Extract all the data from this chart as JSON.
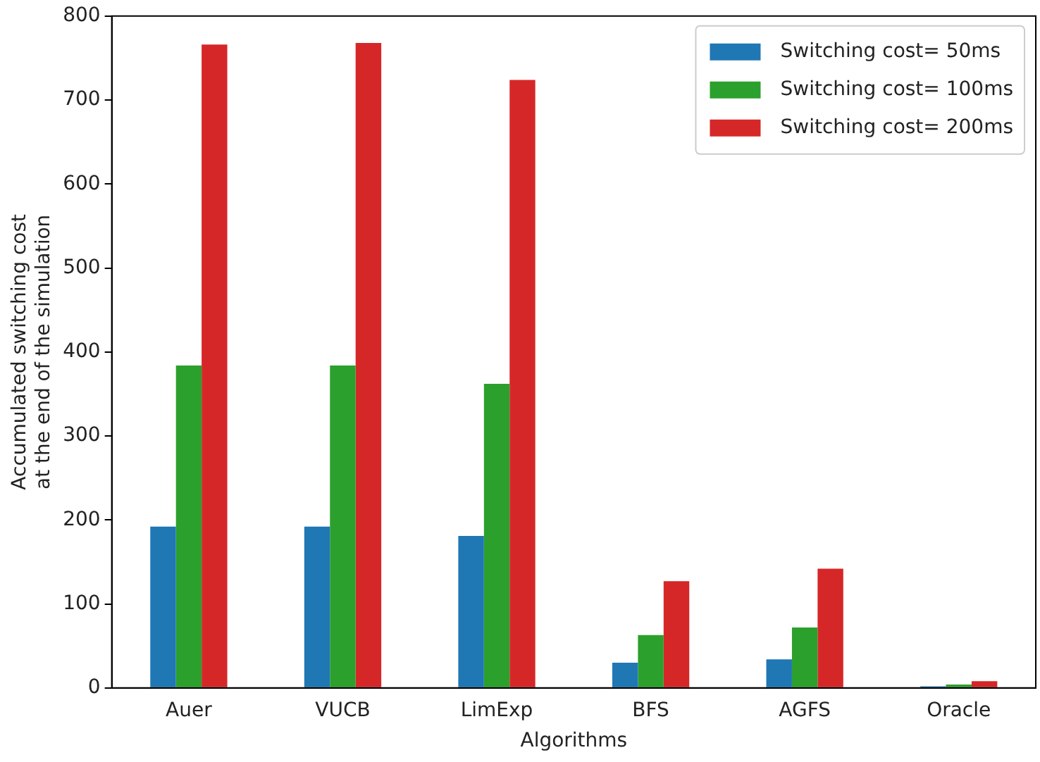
{
  "chart_data": {
    "type": "bar",
    "xlabel": "Algorithms",
    "ylabel": "Accumulated switching cost\nat the end of the simulation",
    "categories": [
      "Auer",
      "VUCB",
      "LimExp",
      "BFS",
      "AGFS",
      "Oracle"
    ],
    "series": [
      {
        "name": "Switching cost= 50ms",
        "color": "#1f77b4",
        "values": [
          192,
          192,
          181,
          30,
          34,
          2
        ]
      },
      {
        "name": "Switching cost= 100ms",
        "color": "#2ca02c",
        "values": [
          384,
          384,
          362,
          63,
          72,
          4
        ]
      },
      {
        "name": "Switching cost= 200ms",
        "color": "#d62728",
        "values": [
          766,
          768,
          724,
          127,
          142,
          8
        ]
      }
    ],
    "ylim": [
      0,
      800
    ],
    "yticks": [
      0,
      100,
      200,
      300,
      400,
      500,
      600,
      700,
      800
    ],
    "grid": false,
    "legend": "top right"
  }
}
